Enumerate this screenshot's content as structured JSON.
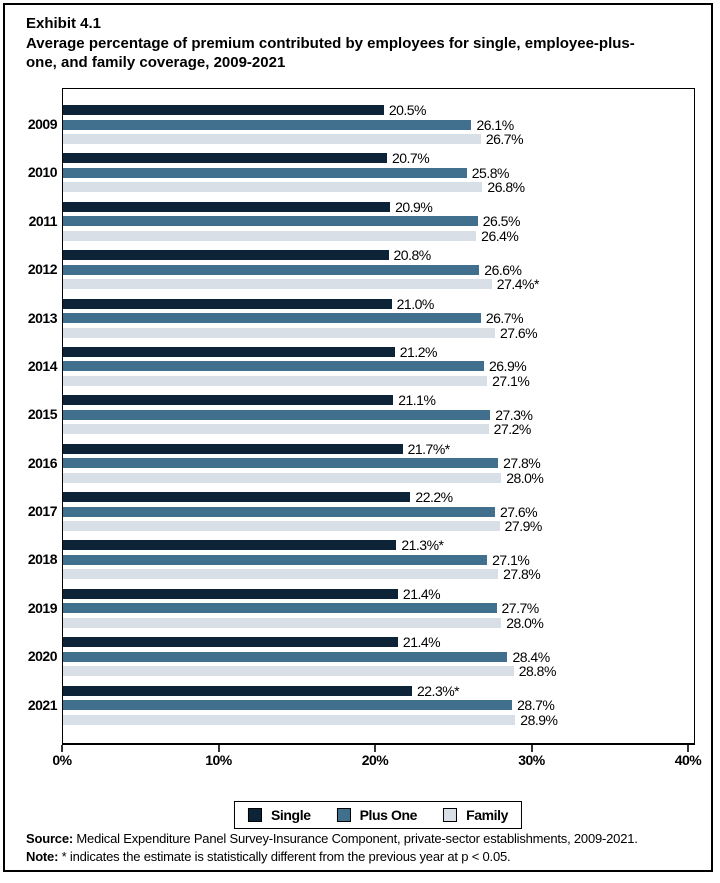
{
  "exhibit": {
    "label": "Exhibit 4.1"
  },
  "title_lines": [
    "Average percentage of premium contributed by employees for single, employee-plus-",
    "one, and family coverage, 2009-2021"
  ],
  "chart_data": {
    "type": "bar",
    "orientation": "horizontal",
    "title": "Average percentage of premium contributed by employees for single, employee-plus-one, and family coverage, 2009-2021",
    "categories": [
      "2009",
      "2010",
      "2011",
      "2012",
      "2013",
      "2014",
      "2015",
      "2016",
      "2017",
      "2018",
      "2019",
      "2020",
      "2021"
    ],
    "series": [
      {
        "name": "Single",
        "color": "#0d2337",
        "values": [
          20.5,
          20.7,
          20.9,
          20.8,
          21.0,
          21.2,
          21.1,
          21.7,
          22.2,
          21.3,
          21.4,
          21.4,
          22.3
        ],
        "labels": [
          "20.5%",
          "20.7%",
          "20.9%",
          "20.8%",
          "21.0%",
          "21.2%",
          "21.1%",
          "21.7%*",
          "22.2%",
          "21.3%*",
          "21.4%",
          "21.4%",
          "22.3%*"
        ]
      },
      {
        "name": "Plus One",
        "color": "#41708f",
        "values": [
          26.1,
          25.8,
          26.5,
          26.6,
          26.7,
          26.9,
          27.3,
          27.8,
          27.6,
          27.1,
          27.7,
          28.4,
          28.7
        ],
        "labels": [
          "26.1%",
          "25.8%",
          "26.5%",
          "26.6%",
          "26.7%",
          "26.9%",
          "27.3%",
          "27.8%",
          "27.6%",
          "27.1%",
          "27.7%",
          "28.4%",
          "28.7%"
        ]
      },
      {
        "name": "Family",
        "color": "#d8dfe7",
        "values": [
          26.7,
          26.8,
          26.4,
          27.4,
          27.6,
          27.1,
          27.2,
          28.0,
          27.9,
          27.8,
          28.0,
          28.8,
          28.9
        ],
        "labels": [
          "26.7%",
          "26.8%",
          "26.4%",
          "27.4%*",
          "27.6%",
          "27.1%",
          "27.2%",
          "28.0%",
          "27.9%",
          "27.8%",
          "28.0%",
          "28.8%",
          "28.9%"
        ]
      }
    ],
    "xlim": [
      0,
      40
    ],
    "x_ticks": [
      "0%",
      "10%",
      "20%",
      "30%",
      "40%"
    ],
    "x_tick_values": [
      0,
      10,
      20,
      30,
      40
    ],
    "grid": false,
    "legend_position": "bottom"
  },
  "footer": {
    "source_label": "Source:",
    "source_text": " Medical Expenditure Panel Survey-Insurance Component, private-sector establishments, 2009-2021.",
    "note_label": "Note:",
    "note_text": " * indicates the estimate is statistically different from the previous year at p < 0.05."
  }
}
